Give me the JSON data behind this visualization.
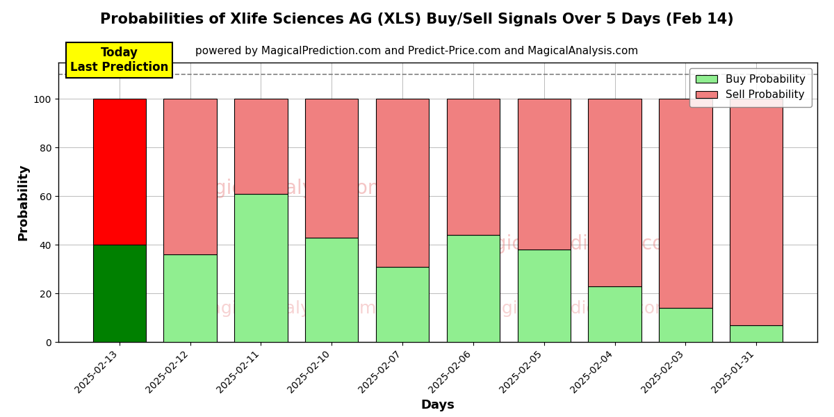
{
  "title": "Probabilities of Xlife Sciences AG (XLS) Buy/Sell Signals Over 5 Days (Feb 14)",
  "subtitle": "powered by MagicalPrediction.com and Predict-Price.com and MagicalAnalysis.com",
  "xlabel": "Days",
  "ylabel": "Probability",
  "dates": [
    "2025-02-13",
    "2025-02-12",
    "2025-02-11",
    "2025-02-10",
    "2025-02-07",
    "2025-02-06",
    "2025-02-05",
    "2025-02-04",
    "2025-02-03",
    "2025-01-31"
  ],
  "buy_values": [
    40,
    36,
    61,
    43,
    31,
    44,
    38,
    23,
    14,
    7
  ],
  "sell_values": [
    60,
    64,
    39,
    57,
    69,
    56,
    62,
    77,
    86,
    93
  ],
  "today_bar_buy_color": "#008000",
  "today_bar_sell_color": "#ff0000",
  "other_bar_buy_color": "#90EE90",
  "other_bar_sell_color": "#F08080",
  "bar_edge_color": "#000000",
  "ylim": [
    0,
    115
  ],
  "dashed_line_y": 110,
  "legend_buy_color": "#90EE90",
  "legend_sell_color": "#F08080",
  "today_label": "Today\nLast Prediction",
  "today_label_bg": "#ffff00",
  "grid_color": "#bbbbbb",
  "title_fontsize": 15,
  "subtitle_fontsize": 11,
  "axis_label_fontsize": 13,
  "tick_fontsize": 10,
  "legend_fontsize": 11,
  "figsize": [
    12,
    6
  ],
  "dpi": 100
}
